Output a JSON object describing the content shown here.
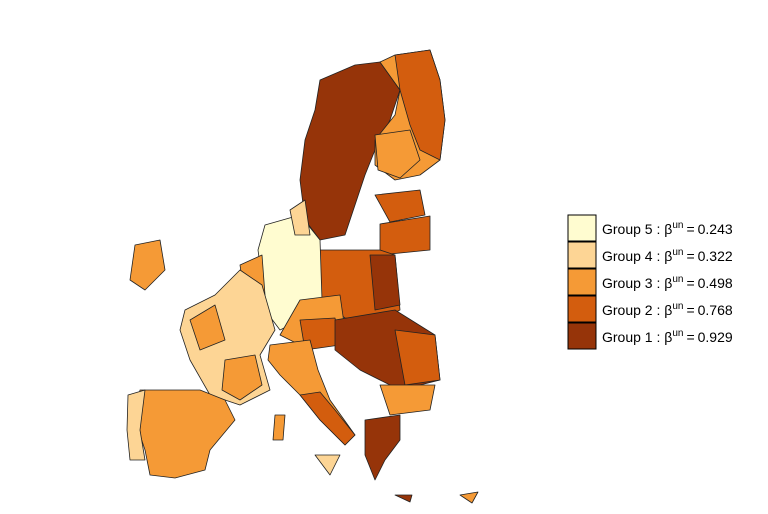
{
  "legend": {
    "items": [
      {
        "label": "Group 5 : β",
        "sup": "un",
        "equals": "=",
        "value": 0.243,
        "color": "#fffcd0"
      },
      {
        "label": "Group 4 : β",
        "sup": "un",
        "equals": "=",
        "value": 0.322,
        "color": "#fdd595"
      },
      {
        "label": "Group 3 : β",
        "sup": "un",
        "equals": "=",
        "value": 0.498,
        "color": "#f59a36"
      },
      {
        "label": "Group 2 : β",
        "sup": "un",
        "equals": "=",
        "value": 0.768,
        "color": "#d35d0e"
      },
      {
        "label": "Group 1 : β",
        "sup": "un",
        "equals": "=",
        "value": 0.929,
        "color": "#963409"
      }
    ]
  }
}
